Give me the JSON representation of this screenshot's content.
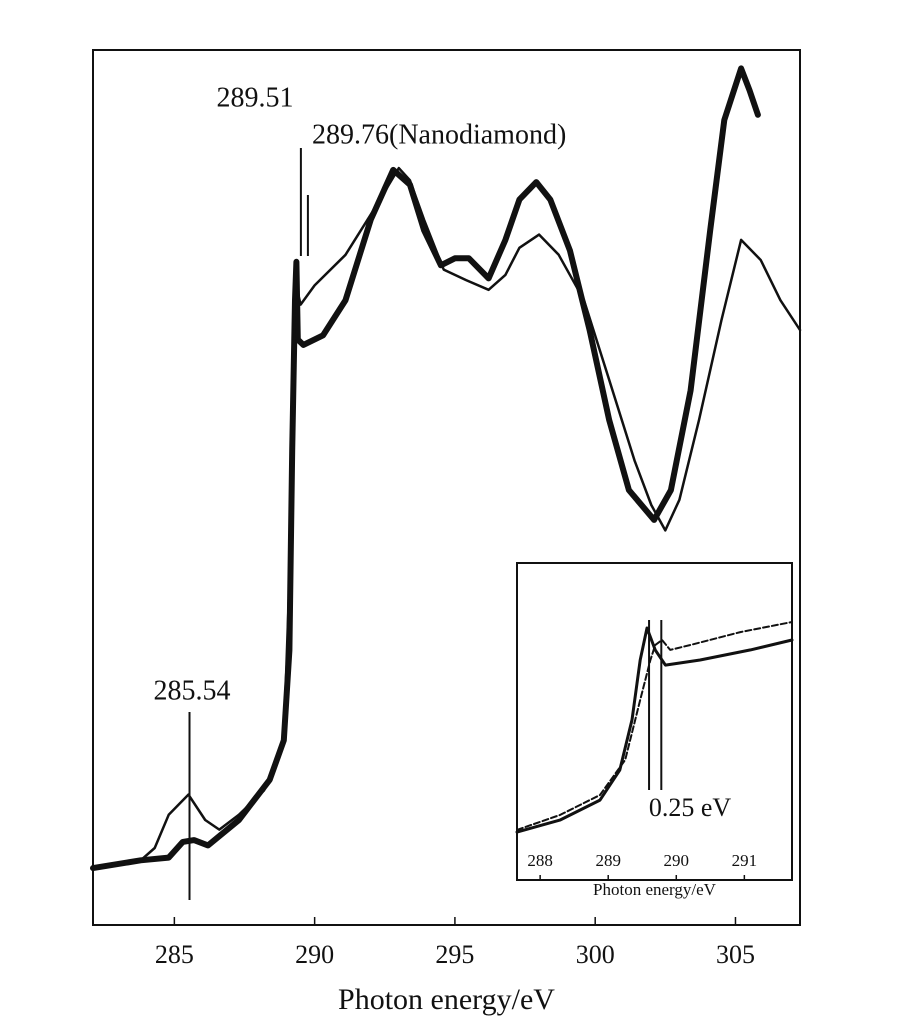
{
  "chart_data": [
    {
      "type": "line",
      "xlabel": "Photon energy/eV",
      "xlim": [
        282.1,
        307.3
      ],
      "ylim": [
        0,
        100
      ],
      "xticks": [
        285,
        290,
        295,
        300,
        305
      ],
      "series": [
        {
          "color": "#111",
          "width": 6,
          "x": [
            282.1,
            283.8,
            284.8,
            285.3,
            285.7,
            286.2,
            287.3,
            288.4,
            288.9,
            289.1,
            289.2,
            289.3,
            289.35,
            289.4,
            289.6,
            290.3,
            291.1,
            292.0,
            292.8,
            293.4,
            293.9,
            294.5,
            295.0,
            295.5,
            296.2,
            296.8,
            297.3,
            297.9,
            298.4,
            299.1,
            299.8,
            300.5,
            301.2,
            302.1,
            302.7,
            303.4,
            304.1,
            304.6,
            305.2,
            305.5,
            305.8
          ],
          "values": [
            6.5,
            7.4,
            7.7,
            9.5,
            9.7,
            9.1,
            12.0,
            16.6,
            21.1,
            31.4,
            54.3,
            71.4,
            75.8,
            66.9,
            66.3,
            67.4,
            71.4,
            80.6,
            86.3,
            84.6,
            79.4,
            75.4,
            76.2,
            76.2,
            73.9,
            78.3,
            82.9,
            84.9,
            82.9,
            77.1,
            68.0,
            57.7,
            49.7,
            46.3,
            49.7,
            61.1,
            79.4,
            92.0,
            97.9,
            95.4,
            92.6
          ]
        },
        {
          "color": "#111",
          "width": 2.5,
          "x": [
            282.1,
            283.8,
            284.3,
            284.8,
            285.5,
            286.1,
            286.6,
            287.3,
            288.2,
            288.9,
            289.2,
            289.3,
            289.5,
            290.0,
            291.1,
            292.1,
            293.0,
            293.4,
            293.9,
            294.6,
            295.4,
            296.2,
            296.8,
            297.3,
            298.0,
            298.7,
            299.6,
            300.5,
            301.4,
            302.0,
            302.5,
            303.0,
            303.7,
            304.5,
            305.2,
            305.9,
            306.6,
            307.3
          ],
          "values": [
            6.5,
            7.4,
            8.8,
            12.6,
            14.9,
            12.0,
            10.9,
            12.6,
            15.4,
            21.1,
            48.6,
            73.7,
            70.9,
            73.1,
            76.6,
            81.7,
            86.5,
            85.1,
            80.6,
            74.9,
            73.7,
            72.6,
            74.3,
            77.4,
            78.9,
            76.6,
            71.4,
            62.3,
            53.1,
            48.0,
            45.1,
            48.6,
            57.7,
            69.1,
            78.3,
            76.0,
            71.4,
            68.0
          ]
        }
      ],
      "annotations": [
        285.54,
        289.51,
        {
          "value": 289.76,
          "label": "289.76(Nanodiamond)"
        }
      ]
    },
    {
      "type": "line",
      "xlabel": "Photon energy/eV",
      "xlim": [
        287.66,
        291.7
      ],
      "ylim": [
        0,
        100
      ],
      "xticks": [
        288,
        289,
        290,
        291
      ],
      "series": [
        {
          "color": "#111",
          "width": 3,
          "x": [
            287.66,
            288.29,
            288.88,
            289.17,
            289.35,
            289.47,
            289.57,
            289.69,
            289.84,
            290.35,
            291.09,
            291.7
          ],
          "values": [
            15.1,
            18.9,
            25.2,
            34.7,
            50.5,
            69.4,
            79.5,
            72.6,
            67.8,
            69.4,
            72.6,
            75.7
          ]
        },
        {
          "color": "#111",
          "width": 2,
          "dash": true,
          "x": [
            287.66,
            288.29,
            288.88,
            289.25,
            289.47,
            289.62,
            289.69,
            289.79,
            289.91,
            290.2,
            290.94,
            291.7
          ],
          "values": [
            15.8,
            20.5,
            26.8,
            37.9,
            56.8,
            69.4,
            74.1,
            75.7,
            72.6,
            74.1,
            78.2,
            81.4
          ]
        }
      ],
      "vlines": [
        289.6,
        289.78
      ],
      "annotation": "0.25 eV"
    }
  ]
}
